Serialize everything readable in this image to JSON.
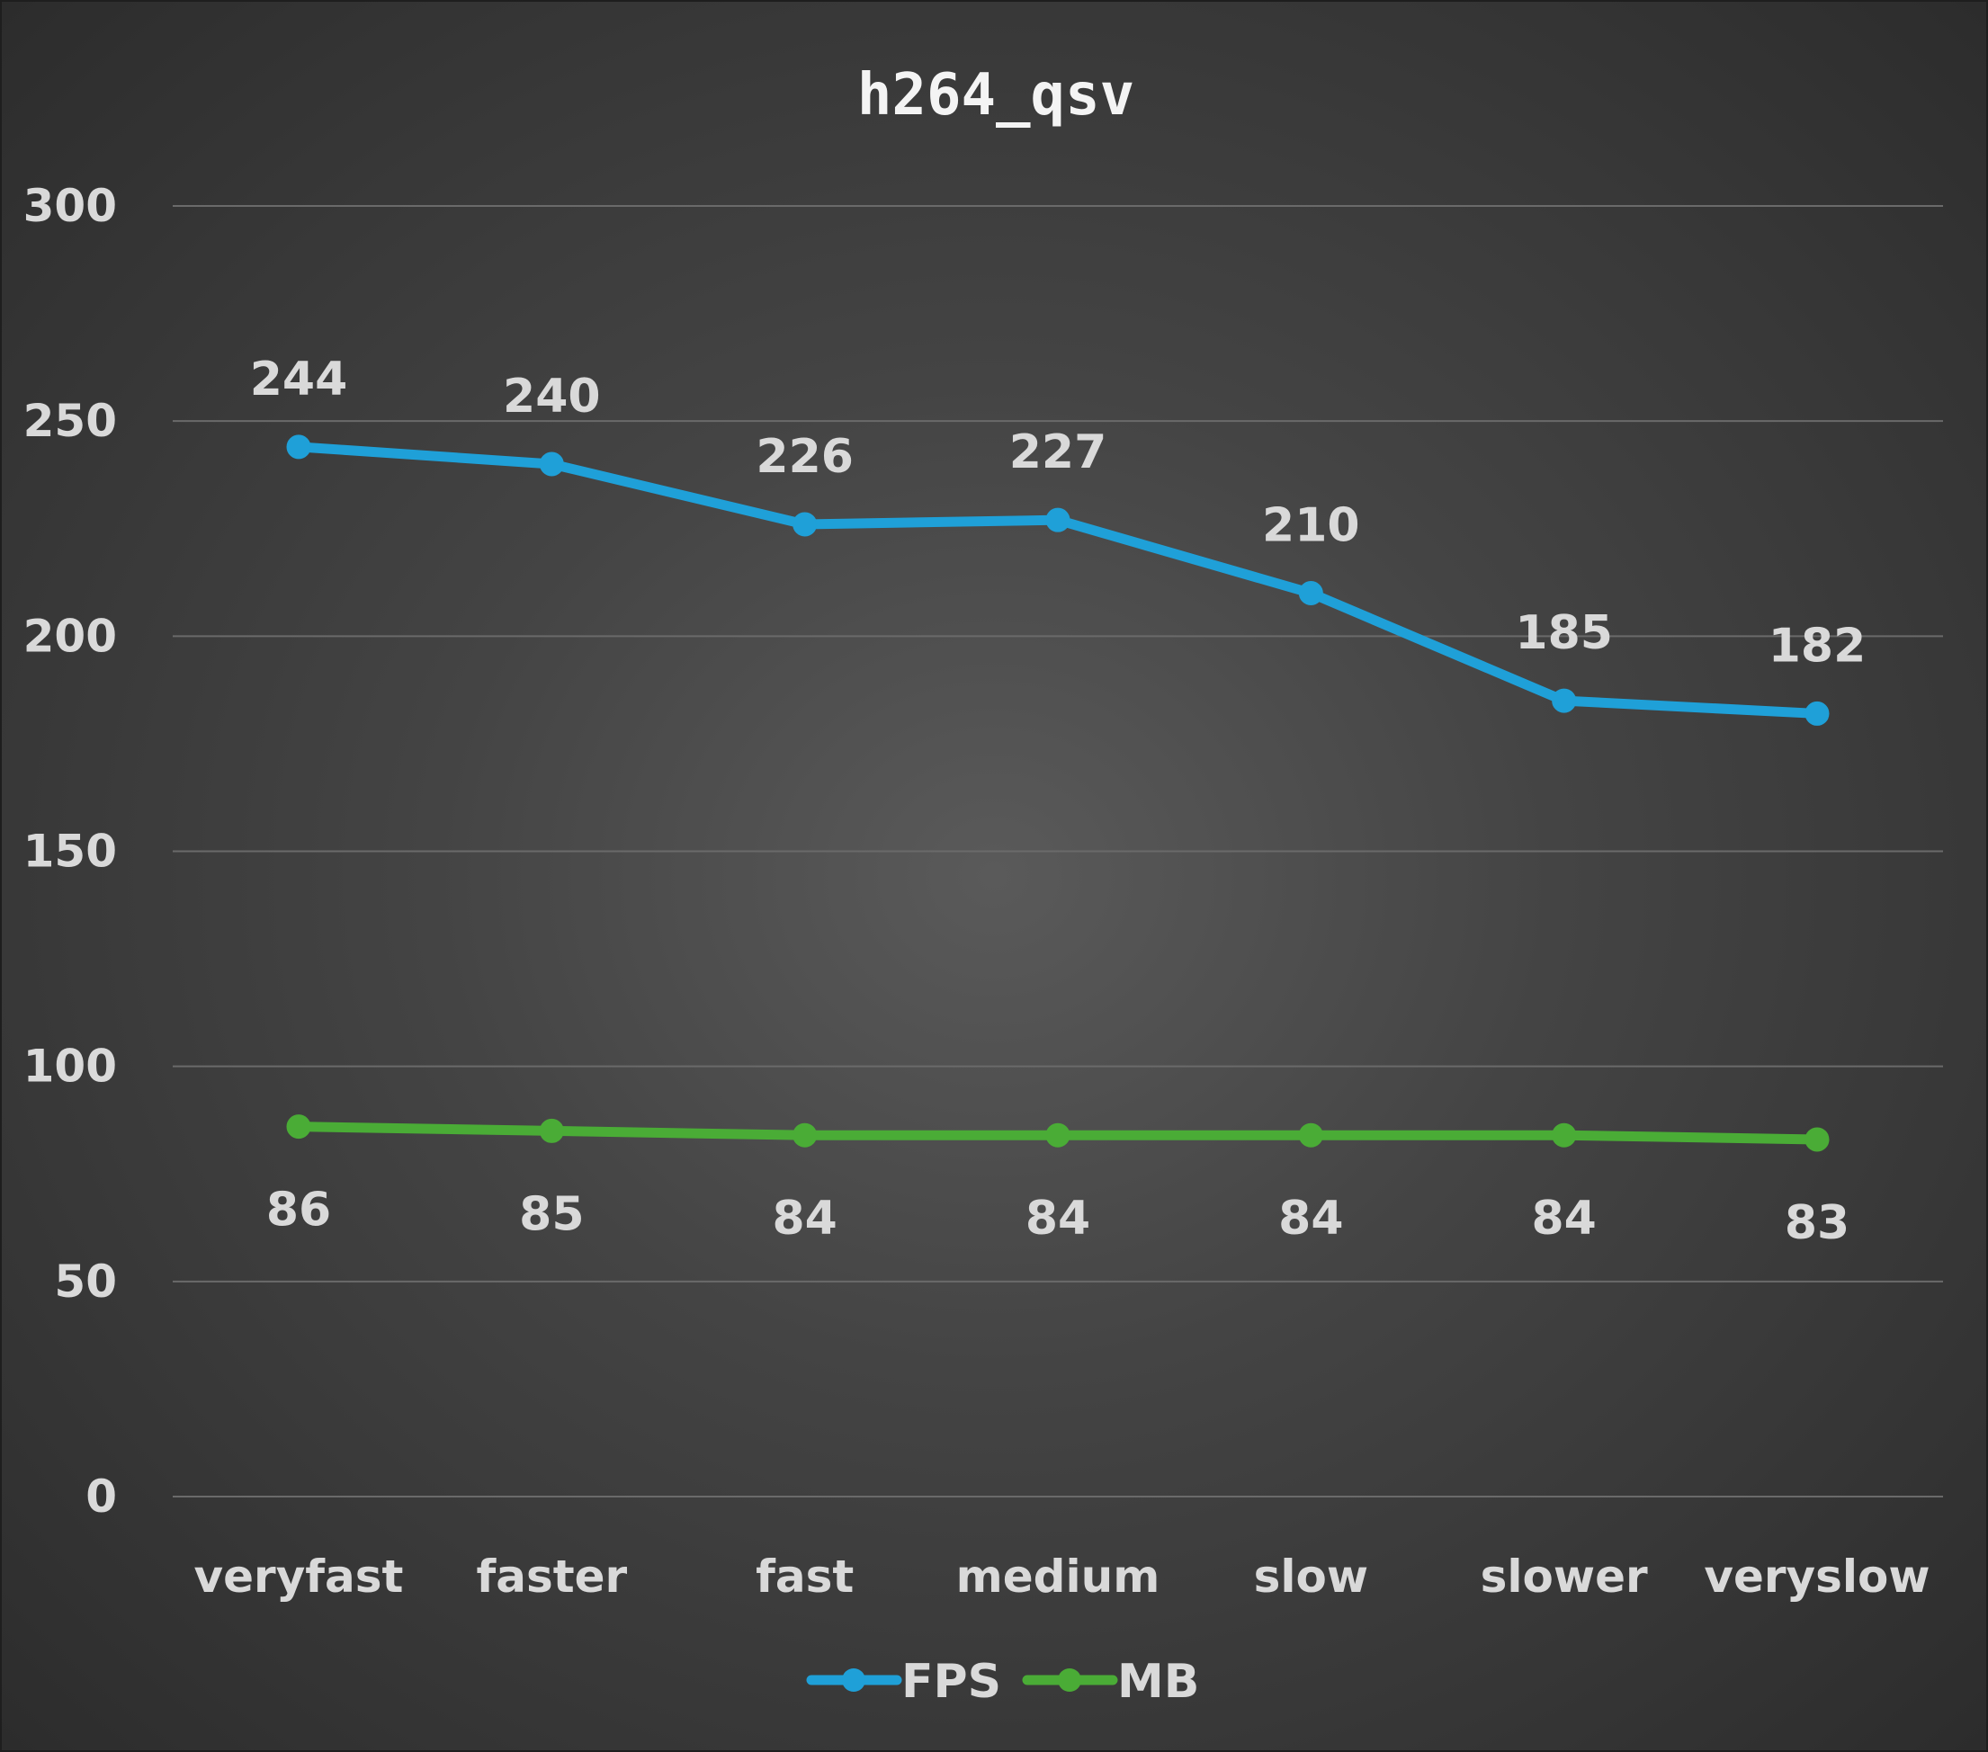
{
  "chart_data": {
    "type": "line",
    "title": "h264_qsv",
    "xlabel": "",
    "ylabel": "",
    "categories": [
      "veryfast",
      "faster",
      "fast",
      "medium",
      "slow",
      "slower",
      "veryslow"
    ],
    "ylim": [
      0,
      300
    ],
    "yticks": [
      "0",
      "50",
      "100",
      "150",
      "200",
      "250",
      "300"
    ],
    "grid": true,
    "legend_position": "bottom",
    "series": [
      {
        "name": "FPS",
        "color": "#1fa0d8",
        "values": [
          244,
          240,
          226,
          227,
          210,
          185,
          182
        ],
        "labels": [
          "244",
          "240",
          "226",
          "227",
          "210",
          "185",
          "182"
        ],
        "label_position": "above"
      },
      {
        "name": "MB",
        "color": "#4aac36",
        "values": [
          86,
          85,
          84,
          84,
          84,
          84,
          83
        ],
        "labels": [
          "86",
          "85",
          "84",
          "84",
          "84",
          "84",
          "83"
        ],
        "label_position": "below"
      }
    ]
  }
}
